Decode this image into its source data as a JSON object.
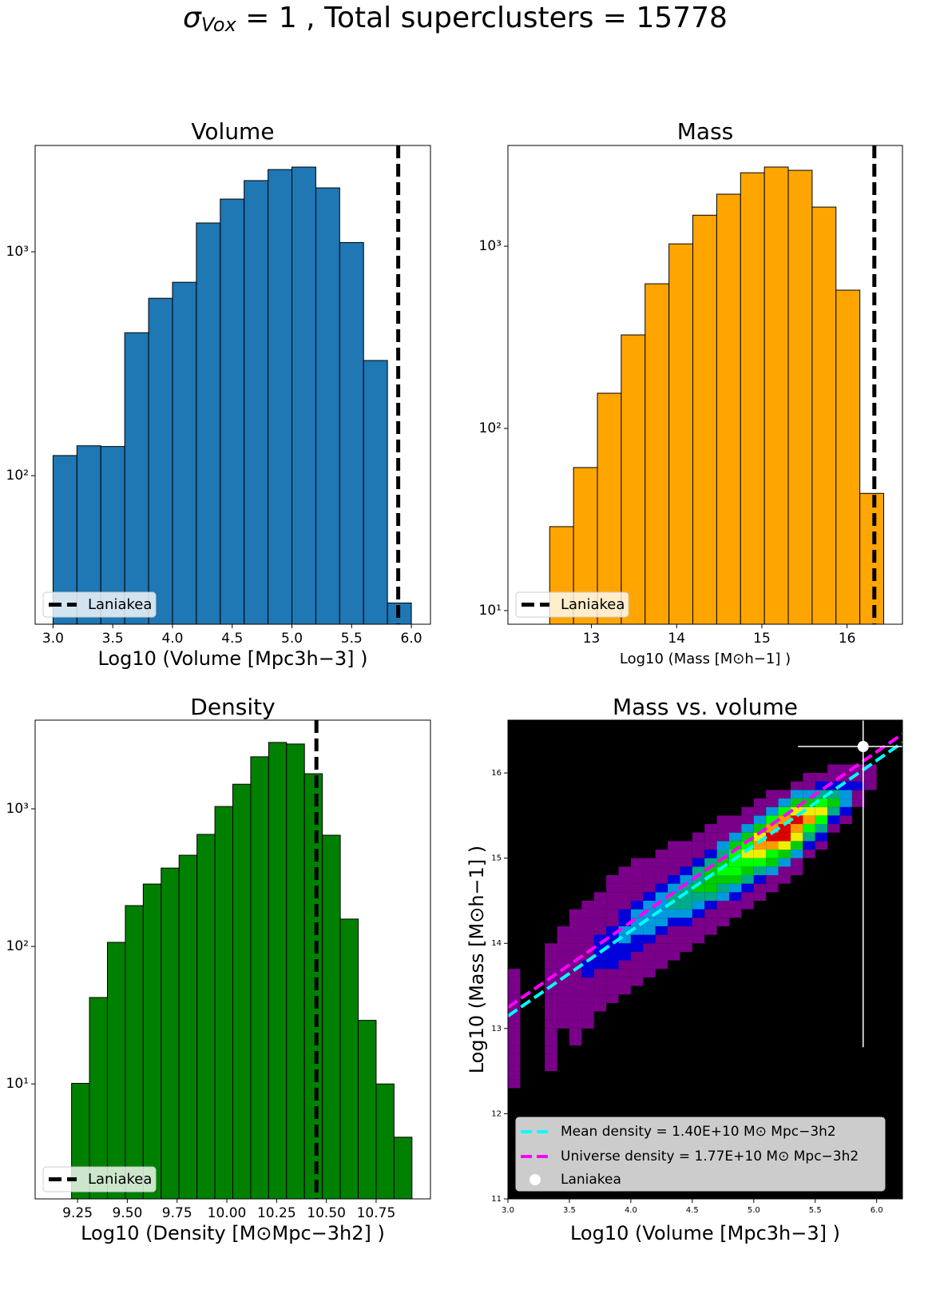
{
  "title": {
    "symbol": "σ",
    "subscript": "Vox",
    "rest": " = 1 , Total superclusters = 15778"
  },
  "chart_data": [
    {
      "type": "histogram",
      "title": "Volume",
      "xlabel": "Log10 (Volume [Mpc3h−3] )",
      "color": "#1f77b4",
      "bins": [
        3.0,
        3.2,
        3.4,
        3.6,
        3.8,
        4.0,
        4.2,
        4.4,
        4.6,
        4.8,
        5.0,
        5.2,
        5.4,
        5.6,
        5.8,
        6.0
      ],
      "counts": [
        123,
        136,
        135,
        435,
        620,
        731,
        1345,
        1720,
        2080,
        2330,
        2390,
        1930,
        1100,
        327,
        27
      ],
      "xlim": [
        2.85,
        6.16
      ],
      "ylim": [
        21.7,
        2985
      ],
      "log_y": true,
      "xticks": [
        {
          "value": 3.0,
          "label": "3.0"
        },
        {
          "value": 3.5,
          "label": "3.5"
        },
        {
          "value": 4.0,
          "label": "4.0"
        },
        {
          "value": 4.5,
          "label": "4.5"
        },
        {
          "value": 5.0,
          "label": "5.0"
        },
        {
          "value": 5.5,
          "label": "5.5"
        },
        {
          "value": 6.0,
          "label": "6.0"
        }
      ],
      "yticks": [
        {
          "value": 100,
          "label": "10²"
        },
        {
          "value": 1000,
          "label": "10³"
        }
      ],
      "vline": {
        "name": "Laniakea",
        "x": 5.89,
        "color": "#000000"
      },
      "legend": "lower left"
    },
    {
      "type": "histogram",
      "title": "Mass",
      "xlabel": "Log10 (Mass [M⊙h−1] )",
      "color": "#ffa500",
      "bins": [
        12.51,
        12.79,
        13.07,
        13.35,
        13.63,
        13.91,
        14.19,
        14.47,
        14.75,
        15.03,
        15.31,
        15.59,
        15.87,
        16.15,
        16.43
      ],
      "counts": [
        28.9,
        61,
        156,
        326,
        622,
        1030,
        1480,
        1930,
        2530,
        2720,
        2610,
        1640,
        574,
        44
      ],
      "xlim": [
        12.02,
        16.65
      ],
      "ylim": [
        8.42,
        3573
      ],
      "log_y": true,
      "xticks": [
        13,
        14,
        15,
        16
      ],
      "yticks": [
        {
          "value": 10,
          "label": "10¹"
        },
        {
          "value": 100,
          "label": "10²"
        },
        {
          "value": 1000,
          "label": "10³"
        }
      ],
      "vline": {
        "name": "Laniakea",
        "x": 16.32,
        "color": "#000000"
      },
      "legend": "lower left"
    },
    {
      "type": "histogram",
      "title": "Density",
      "xlabel": "Log10 (Density [M⊙Mpc−3h2] )",
      "color": "#008000",
      "bins": [
        9.22,
        9.31,
        9.4,
        9.49,
        9.58,
        9.67,
        9.76,
        9.85,
        9.94,
        10.03,
        10.12,
        10.21,
        10.3,
        10.39,
        10.48,
        10.57,
        10.66,
        10.75,
        10.84,
        10.93
      ],
      "counts": [
        10.1,
        42.5,
        107,
        198,
        284,
        371,
        460,
        652,
        1040,
        1510,
        2390,
        3040,
        2960,
        1800,
        643,
        158,
        29,
        10,
        4.1
      ],
      "xlim": [
        9.037,
        11.023
      ],
      "ylim": [
        1.46,
        4415
      ],
      "log_y": true,
      "xticks": [
        {
          "value": 9.25,
          "label": "9.25"
        },
        {
          "value": 9.5,
          "label": "9.50"
        },
        {
          "value": 9.75,
          "label": "9.75"
        },
        {
          "value": 10.0,
          "label": "10.00"
        },
        {
          "value": 10.25,
          "label": "10.25"
        },
        {
          "value": 10.5,
          "label": "10.50"
        },
        {
          "value": 10.75,
          "label": "10.75"
        }
      ],
      "yticks": [
        {
          "value": 10,
          "label": "10¹"
        },
        {
          "value": 100,
          "label": "10²"
        },
        {
          "value": 1000,
          "label": "10³"
        }
      ],
      "vline": {
        "name": "Laniakea",
        "x": 10.45,
        "color": "#000000"
      },
      "legend": "lower left"
    },
    {
      "type": "heatmap",
      "title": "Mass vs. volume",
      "xlabel": "Log10 (Volume [Mpc3h−3] )",
      "ylabel": "Log10 (Mass [M⊙h−1] )",
      "background": "#000000",
      "xlim": [
        3.0,
        6.21
      ],
      "ylim": [
        11,
        16.62
      ],
      "xticks": [
        {
          "value": 3.0,
          "label": "3.0"
        },
        {
          "value": 3.5,
          "label": "3.5"
        },
        {
          "value": 4.0,
          "label": "4.0"
        },
        {
          "value": 4.5,
          "label": "4.5"
        },
        {
          "value": 5.0,
          "label": "5.0"
        },
        {
          "value": 5.5,
          "label": "5.5"
        },
        {
          "value": 6.0,
          "label": "6.0"
        }
      ],
      "yticks": [
        11,
        12,
        13,
        14,
        15,
        16
      ],
      "cell_width": 0.1,
      "cell_height": 0.1,
      "vmax": 100,
      "colormap": [
        "#000000",
        "#7a008a",
        "#0000dd",
        "#0099dd",
        "#00aa88",
        "#00cc00",
        "#00ff00",
        "#eeee00",
        "#ff9900",
        "#dd0000",
        "#cccccc"
      ],
      "columns": [
        {
          "x": 3.0,
          "y_start": 12.3,
          "counts": [
            10,
            12,
            12,
            12,
            12,
            12,
            12,
            12,
            12,
            12,
            10,
            10,
            10,
            8
          ]
        },
        {
          "x": 3.3,
          "y_start": 12.5,
          "counts": [
            8,
            10,
            12,
            12,
            12,
            12,
            12,
            12,
            12,
            12,
            12,
            12,
            10,
            8,
            8
          ]
        },
        {
          "x": 3.4,
          "y_start": 13.0,
          "counts": [
            8,
            10,
            12,
            12,
            12,
            12,
            12,
            10,
            10,
            8,
            8,
            8
          ]
        },
        {
          "x": 3.5,
          "y_start": 12.8,
          "counts": [
            8,
            10,
            12,
            12,
            12,
            14,
            14,
            14,
            14,
            12,
            12,
            10,
            10,
            8,
            8,
            8
          ]
        },
        {
          "x": 3.6,
          "y_start": 13.0,
          "counts": [
            8,
            10,
            12,
            12,
            14,
            14,
            20,
            20,
            14,
            12,
            12,
            10,
            10,
            8,
            8
          ]
        },
        {
          "x": 3.7,
          "y_start": 13.2,
          "counts": [
            8,
            10,
            12,
            14,
            14,
            20,
            22,
            22,
            20,
            14,
            12,
            10,
            10,
            8
          ]
        },
        {
          "x": 3.8,
          "y_start": 13.3,
          "counts": [
            8,
            10,
            12,
            14,
            20,
            22,
            22,
            22,
            20,
            14,
            12,
            10,
            10,
            8,
            8
          ]
        },
        {
          "x": 3.9,
          "y_start": 13.4,
          "counts": [
            8,
            10,
            12,
            14,
            20,
            22,
            25,
            25,
            22,
            20,
            14,
            12,
            10,
            8,
            8
          ]
        },
        {
          "x": 4.0,
          "y_start": 13.5,
          "counts": [
            8,
            10,
            12,
            14,
            20,
            22,
            25,
            25,
            25,
            22,
            14,
            12,
            10,
            8,
            8
          ]
        },
        {
          "x": 4.1,
          "y_start": 13.6,
          "counts": [
            8,
            10,
            12,
            14,
            20,
            25,
            30,
            30,
            25,
            22,
            14,
            12,
            10,
            8
          ]
        },
        {
          "x": 4.2,
          "y_start": 13.7,
          "counts": [
            8,
            10,
            12,
            14,
            20,
            25,
            30,
            32,
            30,
            22,
            14,
            12,
            10,
            8
          ]
        },
        {
          "x": 4.3,
          "y_start": 13.8,
          "counts": [
            8,
            10,
            12,
            14,
            22,
            30,
            35,
            35,
            30,
            22,
            14,
            12,
            10,
            8
          ]
        },
        {
          "x": 4.4,
          "y_start": 13.9,
          "counts": [
            8,
            10,
            12,
            20,
            25,
            35,
            40,
            40,
            30,
            22,
            14,
            12,
            8
          ]
        },
        {
          "x": 4.5,
          "y_start": 14.0,
          "counts": [
            8,
            10,
            14,
            20,
            30,
            40,
            45,
            40,
            35,
            22,
            14,
            10,
            8
          ]
        },
        {
          "x": 4.6,
          "y_start": 14.1,
          "counts": [
            8,
            10,
            14,
            22,
            35,
            45,
            50,
            45,
            35,
            22,
            14,
            10,
            8
          ]
        },
        {
          "x": 4.7,
          "y_start": 14.2,
          "counts": [
            8,
            12,
            14,
            25,
            40,
            50,
            55,
            50,
            40,
            25,
            14,
            10,
            8
          ]
        },
        {
          "x": 4.8,
          "y_start": 14.3,
          "counts": [
            8,
            12,
            20,
            30,
            45,
            55,
            60,
            55,
            45,
            25,
            14,
            10
          ]
        },
        {
          "x": 4.9,
          "y_start": 14.4,
          "counts": [
            8,
            12,
            20,
            35,
            50,
            60,
            70,
            60,
            45,
            25,
            14,
            10
          ]
        },
        {
          "x": 5.0,
          "y_start": 14.5,
          "counts": [
            8,
            12,
            22,
            40,
            55,
            70,
            80,
            70,
            50,
            30,
            14,
            10
          ]
        },
        {
          "x": 5.1,
          "y_start": 14.6,
          "counts": [
            10,
            14,
            25,
            45,
            60,
            80,
            90,
            80,
            55,
            30,
            14,
            10
          ]
        },
        {
          "x": 5.2,
          "y_start": 14.7,
          "counts": [
            10,
            14,
            25,
            45,
            70,
            90,
            90,
            80,
            55,
            30,
            14
          ]
        },
        {
          "x": 5.3,
          "y_start": 14.8,
          "counts": [
            10,
            14,
            25,
            45,
            70,
            80,
            90,
            70,
            50,
            25,
            12
          ]
        },
        {
          "x": 5.4,
          "y_start": 15.0,
          "counts": [
            12,
            22,
            40,
            60,
            75,
            70,
            50,
            25,
            12,
            10
          ]
        },
        {
          "x": 5.5,
          "y_start": 15.1,
          "counts": [
            12,
            22,
            35,
            55,
            65,
            55,
            35,
            20,
            12
          ]
        },
        {
          "x": 5.6,
          "y_start": 15.3,
          "counts": [
            12,
            22,
            40,
            45,
            35,
            22,
            12,
            10
          ]
        },
        {
          "x": 5.7,
          "y_start": 15.4,
          "counts": [
            12,
            20,
            30,
            25,
            20,
            12,
            10
          ]
        },
        {
          "x": 5.8,
          "y_start": 15.6,
          "counts": [
            10,
            14,
            20,
            14,
            10
          ]
        },
        {
          "x": 5.9,
          "y_start": 15.8,
          "counts": [
            10,
            12,
            10
          ]
        }
      ],
      "lines": [
        {
          "name": "Mean density = 1.40E+10 M⊙ Mpc−3h2",
          "density": 14000000000,
          "color": "#00ffff"
        },
        {
          "name": "Universe density = 1.77E+10 M⊙ Mpc−3h2",
          "density": 17700000000,
          "color": "#ff00ff"
        }
      ],
      "point": {
        "name": "Laniakea",
        "x": 5.89,
        "y": 16.31,
        "xerr": 0.53,
        "yerr": 3.53,
        "color": "#ffffff"
      },
      "legend": "lower left"
    }
  ]
}
